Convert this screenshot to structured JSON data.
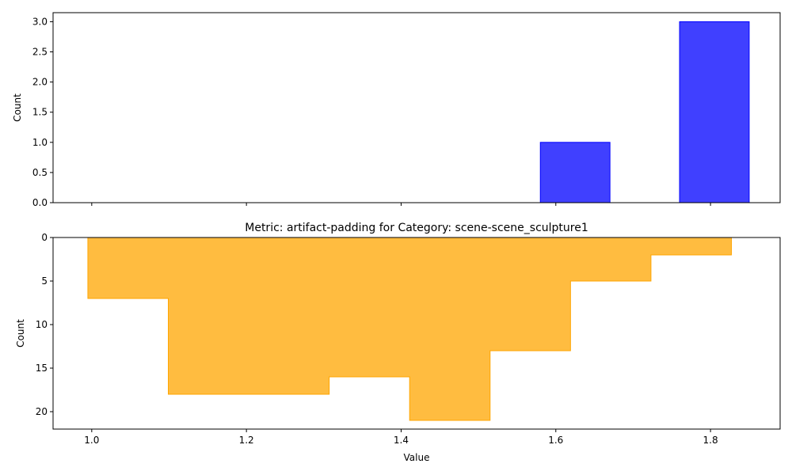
{
  "chart_data": [
    {
      "type": "bar",
      "title": "",
      "xlabel": "",
      "ylabel": "Count",
      "xlim": [
        0.95,
        1.89
      ],
      "ylim": [
        0,
        3.15
      ],
      "yticks": [
        0.0,
        0.5,
        1.0,
        1.5,
        2.0,
        2.5,
        3.0
      ],
      "ytick_labels": [
        "0.0",
        "0.5",
        "1.0",
        "1.5",
        "2.0",
        "2.5",
        "3.0"
      ],
      "xticks": [
        1.0,
        1.2,
        1.4,
        1.6,
        1.8
      ],
      "show_xtick_labels": false,
      "bar_color": "#0000ff",
      "bin_edges": [
        1.58,
        1.67,
        1.76,
        1.85
      ],
      "values": [
        1,
        0,
        3
      ],
      "grid": false
    },
    {
      "type": "area",
      "title": "Metric: artifact-padding for Category: scene-scene_sculpture1",
      "xlabel": "Value",
      "ylabel": "Count",
      "xlim": [
        0.95,
        1.89
      ],
      "ylim": [
        22,
        0
      ],
      "y_inverted": true,
      "yticks": [
        0,
        5,
        10,
        15,
        20
      ],
      "ytick_labels": [
        "0",
        "5",
        "10",
        "15",
        "20"
      ],
      "xticks": [
        1.0,
        1.2,
        1.4,
        1.6,
        1.8
      ],
      "xtick_labels": [
        "1.0",
        "1.2",
        "1.4",
        "1.6",
        "1.8"
      ],
      "fill_color": "#ffa500",
      "bin_edges": [
        0.995,
        1.099,
        1.203,
        1.307,
        1.411,
        1.515,
        1.619,
        1.723,
        1.827
      ],
      "values": [
        7,
        18,
        18,
        16,
        21,
        13,
        5,
        2
      ],
      "grid": false
    }
  ]
}
